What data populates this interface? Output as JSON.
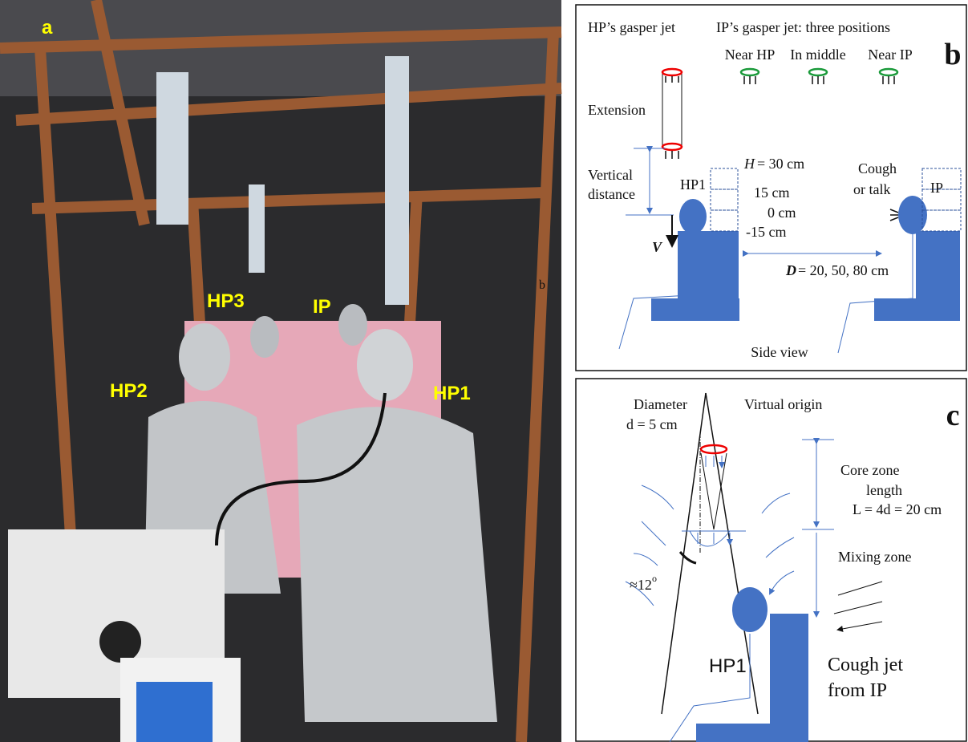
{
  "panel_a": {
    "label": "a",
    "labels": [
      "HP3",
      "IP",
      "HP2",
      "HP1"
    ],
    "stray": "b"
  },
  "panel_b": {
    "label": "b",
    "hp_jet": "HP’s gasper jet",
    "ip_jet": "IP’s gasper jet: three positions",
    "positions": [
      "Near HP",
      "In middle",
      "Near IP"
    ],
    "extension": "Extension",
    "vertical_distance": [
      "Vertical",
      "distance"
    ],
    "hp1": "HP1",
    "velocity": "V",
    "height_symbol": "H",
    "heights": [
      "= 30 cm",
      "15 cm",
      "0 cm",
      "-15 cm"
    ],
    "cough": [
      "Cough",
      "or talk"
    ],
    "ip": "IP",
    "distance_symbol": "D",
    "distance": "= 20, 50, 80 cm",
    "side_view": "Side view"
  },
  "panel_c": {
    "label": "c",
    "diameter": [
      "Diameter",
      "d = 5 cm"
    ],
    "virtual_origin": "Virtual origin",
    "core_zone": [
      "Core zone",
      "length",
      "L = 4d = 20 cm"
    ],
    "mixing_zone": "Mixing zone",
    "angle": "≈12",
    "angle_unit": "o",
    "hp1": "HP1",
    "cough_jet": [
      "Cough jet",
      "from IP"
    ]
  }
}
